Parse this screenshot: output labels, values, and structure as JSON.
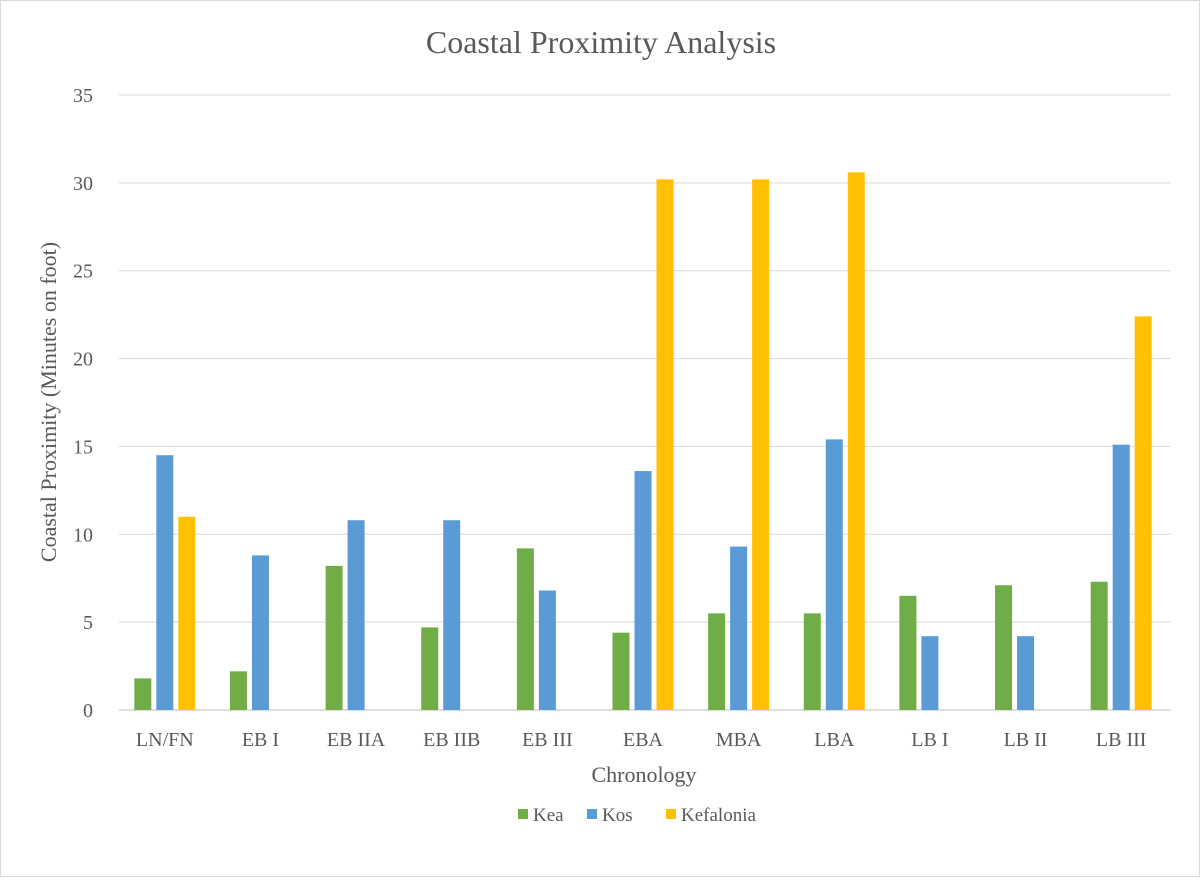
{
  "chart_data": {
    "type": "bar",
    "title": "Coastal Proximity Analysis",
    "xlabel": "Chronology",
    "ylabel": "Coastal Proximity (Minutes on foot)",
    "ylim": [
      0,
      35
    ],
    "yticks": [
      0,
      5,
      10,
      15,
      20,
      25,
      30,
      35
    ],
    "grid": true,
    "legend_position": "bottom",
    "categories": [
      "LN/FN",
      "EB I",
      "EB IIA",
      "EB IIB",
      "EB III",
      "EBA",
      "MBA",
      "LBA",
      "LB I",
      "LB II",
      "LB III"
    ],
    "series": [
      {
        "name": "Kea",
        "color": "#70ad47",
        "values": [
          1.8,
          2.2,
          8.2,
          4.7,
          9.2,
          4.4,
          5.5,
          5.5,
          6.5,
          7.1,
          7.3
        ]
      },
      {
        "name": "Kos",
        "color": "#5b9bd5",
        "values": [
          14.5,
          8.8,
          10.8,
          10.8,
          6.8,
          13.6,
          9.3,
          15.4,
          4.2,
          4.2,
          15.1
        ]
      },
      {
        "name": "Kefalonia",
        "color": "#ffc000",
        "values": [
          11.0,
          0,
          0,
          0,
          0,
          30.2,
          30.2,
          30.6,
          0,
          0,
          22.4
        ]
      }
    ]
  }
}
